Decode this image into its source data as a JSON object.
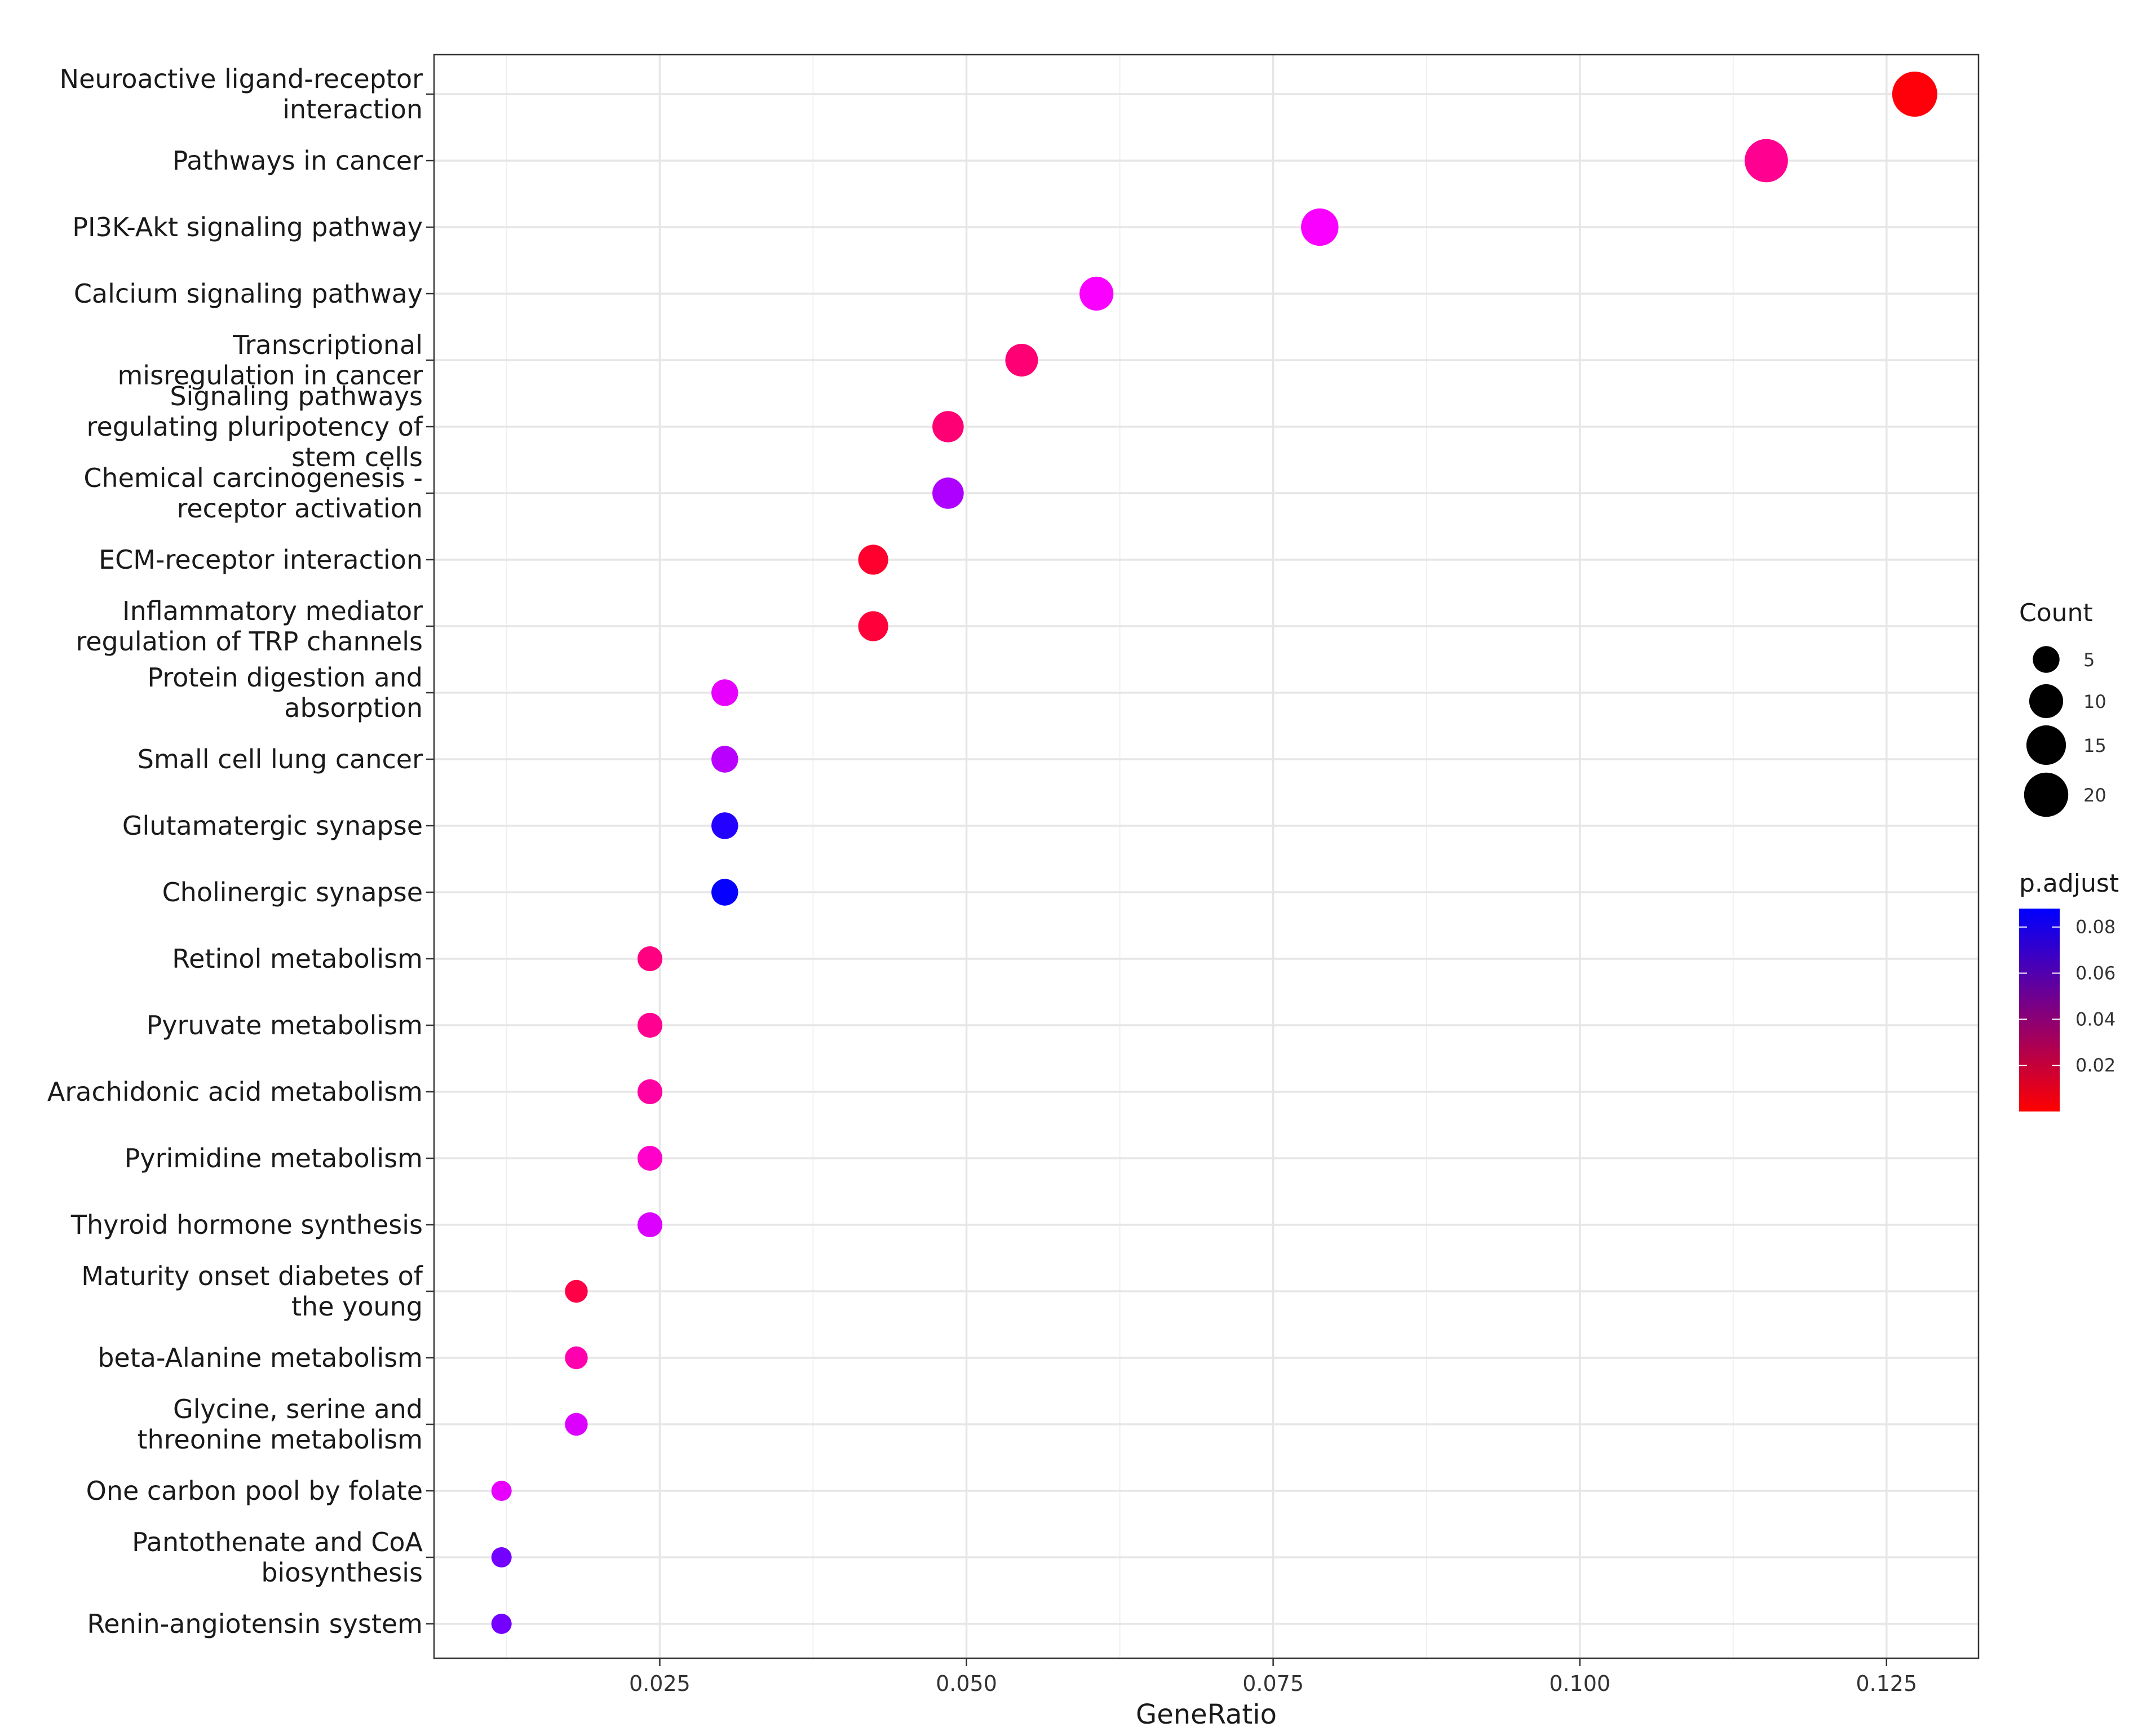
{
  "chart_data": {
    "type": "scatter",
    "xlabel": "GeneRatio",
    "ylabel": "",
    "xlim": [
      0.0066,
      0.1325
    ],
    "x_ticks": [
      0.025,
      0.05,
      0.075,
      0.1,
      0.125
    ],
    "x_tick_labels": [
      "0.025",
      "0.050",
      "0.075",
      "0.100",
      "0.125"
    ],
    "grid": true,
    "legend_position": "right",
    "size_legend": {
      "title": "Count",
      "values": [
        5,
        10,
        15,
        20
      ],
      "labels": [
        "5",
        "10",
        "15",
        "20"
      ]
    },
    "color_legend": {
      "title": "p.adjust",
      "range": [
        0.0,
        0.088
      ],
      "ticks": [
        0.02,
        0.04,
        0.06,
        0.08
      ],
      "tick_labels": [
        "0.02",
        "0.04",
        "0.06",
        "0.08"
      ],
      "low_color": "#ff0000",
      "high_color": "#0000ff"
    },
    "points": [
      {
        "label": "Neuroactive ligand-receptor interaction",
        "lines": [
          "Neuroactive ligand-receptor",
          "interaction"
        ],
        "x": 0.1273,
        "count": 21,
        "p_adjust": 0.002
      },
      {
        "label": "Pathways in cancer",
        "lines": [
          "Pathways in cancer"
        ],
        "x": 0.1152,
        "count": 19,
        "p_adjust": 0.025
      },
      {
        "label": "PI3K-Akt signaling pathway",
        "lines": [
          "PI3K-Akt signaling pathway"
        ],
        "x": 0.0788,
        "count": 13,
        "p_adjust": 0.045
      },
      {
        "label": "Calcium signaling pathway",
        "lines": [
          "Calcium signaling pathway"
        ],
        "x": 0.0606,
        "count": 10,
        "p_adjust": 0.045
      },
      {
        "label": "Transcriptional misregulation in cancer",
        "lines": [
          "Transcriptional",
          "misregulation in cancer"
        ],
        "x": 0.0545,
        "count": 9,
        "p_adjust": 0.02
      },
      {
        "label": "Signaling pathways regulating pluripotency of stem cells",
        "lines": [
          "Signaling pathways",
          "regulating pluripotency of",
          "stem cells"
        ],
        "x": 0.0485,
        "count": 8,
        "p_adjust": 0.02
      },
      {
        "label": "Chemical carcinogenesis - receptor activation",
        "lines": [
          "Chemical carcinogenesis -",
          "receptor activation"
        ],
        "x": 0.0485,
        "count": 8,
        "p_adjust": 0.058
      },
      {
        "label": "ECM-receptor interaction",
        "lines": [
          "ECM-receptor interaction"
        ],
        "x": 0.0424,
        "count": 7,
        "p_adjust": 0.008
      },
      {
        "label": "Inflammatory mediator regulation of TRP channels",
        "lines": [
          "Inflammatory mediator",
          "regulation of TRP channels"
        ],
        "x": 0.0424,
        "count": 7,
        "p_adjust": 0.01
      },
      {
        "label": "Protein digestion and absorption",
        "lines": [
          "Protein digestion and",
          "absorption"
        ],
        "x": 0.0303,
        "count": 5,
        "p_adjust": 0.048
      },
      {
        "label": "Small cell lung cancer",
        "lines": [
          "Small cell lung cancer"
        ],
        "x": 0.0303,
        "count": 5,
        "p_adjust": 0.056
      },
      {
        "label": "Glutamatergic synapse",
        "lines": [
          "Glutamatergic synapse"
        ],
        "x": 0.0303,
        "count": 5,
        "p_adjust": 0.082
      },
      {
        "label": "Cholinergic synapse",
        "lines": [
          "Cholinergic synapse"
        ],
        "x": 0.0303,
        "count": 5,
        "p_adjust": 0.087
      },
      {
        "label": "Retinol metabolism",
        "lines": [
          "Retinol metabolism"
        ],
        "x": 0.0242,
        "count": 4,
        "p_adjust": 0.022
      },
      {
        "label": "Pyruvate metabolism",
        "lines": [
          "Pyruvate metabolism"
        ],
        "x": 0.0242,
        "count": 4,
        "p_adjust": 0.025
      },
      {
        "label": "Arachidonic acid metabolism",
        "lines": [
          "Arachidonic acid metabolism"
        ],
        "x": 0.0242,
        "count": 4,
        "p_adjust": 0.028
      },
      {
        "label": "Pyrimidine metabolism",
        "lines": [
          "Pyrimidine metabolism"
        ],
        "x": 0.0242,
        "count": 4,
        "p_adjust": 0.035
      },
      {
        "label": "Thyroid hormone synthesis",
        "lines": [
          "Thyroid hormone synthesis"
        ],
        "x": 0.0242,
        "count": 4,
        "p_adjust": 0.05
      },
      {
        "label": "Maturity onset diabetes of the young",
        "lines": [
          "Maturity onset diabetes of",
          "the young"
        ],
        "x": 0.0182,
        "count": 3,
        "p_adjust": 0.012
      },
      {
        "label": "beta-Alanine metabolism",
        "lines": [
          "beta-Alanine metabolism"
        ],
        "x": 0.0182,
        "count": 3,
        "p_adjust": 0.03
      },
      {
        "label": "Glycine, serine and threonine metabolism",
        "lines": [
          "Glycine, serine and",
          "threonine metabolism"
        ],
        "x": 0.0182,
        "count": 3,
        "p_adjust": 0.05
      },
      {
        "label": "One carbon pool by folate",
        "lines": [
          "One carbon pool by folate"
        ],
        "x": 0.0121,
        "count": 2,
        "p_adjust": 0.048
      },
      {
        "label": "Pantothenate and CoA biosynthesis",
        "lines": [
          "Pantothenate and CoA",
          "biosynthesis"
        ],
        "x": 0.0121,
        "count": 2,
        "p_adjust": 0.068
      },
      {
        "label": "Renin-angiotensin system",
        "lines": [
          "Renin-angiotensin system"
        ],
        "x": 0.0121,
        "count": 2,
        "p_adjust": 0.068
      }
    ]
  }
}
